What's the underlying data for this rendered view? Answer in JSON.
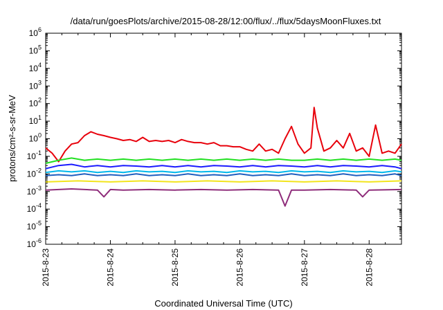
{
  "chart_data": {
    "type": "line",
    "title": "/data/run/goesPlots/archive/2015-08-28/12:00/flux/../flux/5daysMoonFluxes.txt",
    "xlabel": "Coordinated Universal Time (UTC)",
    "ylabel": "protons/cm²-s-sr-MeV",
    "yscale": "log",
    "ylim": [
      1e-06,
      1000000.0
    ],
    "xlim": [
      0,
      5.5
    ],
    "y_ticks": [
      {
        "base": "10",
        "exp": "-6"
      },
      {
        "base": "10",
        "exp": "-5"
      },
      {
        "base": "10",
        "exp": "-4"
      },
      {
        "base": "10",
        "exp": "-3"
      },
      {
        "base": "10",
        "exp": "-2"
      },
      {
        "base": "10",
        "exp": "-1"
      },
      {
        "base": "10",
        "exp": "0"
      },
      {
        "base": "10",
        "exp": "1"
      },
      {
        "base": "10",
        "exp": "2"
      },
      {
        "base": "10",
        "exp": "3"
      },
      {
        "base": "10",
        "exp": "4"
      },
      {
        "base": "10",
        "exp": "5"
      },
      {
        "base": "10",
        "exp": "6"
      }
    ],
    "x_ticks": [
      "2015-8-23",
      "2015-8-24",
      "2015-8-25",
      "2015-8-26",
      "2015-8-27",
      "2015-8-28"
    ],
    "grid": false,
    "series": [
      {
        "color": "#e8000b",
        "x": [
          0,
          0.1,
          0.2,
          0.3,
          0.4,
          0.5,
          0.6,
          0.7,
          0.8,
          0.9,
          1.0,
          1.1,
          1.2,
          1.3,
          1.4,
          1.5,
          1.6,
          1.7,
          1.8,
          1.9,
          2.0,
          2.1,
          2.2,
          2.3,
          2.4,
          2.5,
          2.6,
          2.7,
          2.8,
          2.9,
          3.0,
          3.1,
          3.2,
          3.3,
          3.4,
          3.5,
          3.6,
          3.7,
          3.8,
          3.9,
          4.0,
          4.1,
          4.15,
          4.2,
          4.3,
          4.4,
          4.5,
          4.6,
          4.7,
          4.8,
          4.9,
          5.0,
          5.1,
          5.2,
          5.3,
          5.4,
          5.5
        ],
        "y": [
          0.3,
          0.15,
          0.05,
          0.2,
          0.5,
          0.6,
          1.5,
          2.5,
          1.8,
          1.5,
          1.2,
          1.0,
          0.8,
          0.9,
          0.7,
          1.2,
          0.7,
          0.8,
          0.7,
          0.8,
          0.6,
          0.9,
          0.7,
          0.6,
          0.6,
          0.5,
          0.6,
          0.4,
          0.4,
          0.35,
          0.35,
          0.25,
          0.2,
          0.5,
          0.2,
          0.25,
          0.15,
          1.0,
          5,
          0.5,
          0.15,
          0.3,
          60,
          4,
          0.2,
          0.3,
          0.8,
          0.3,
          2,
          0.2,
          0.3,
          0.1,
          6,
          0.15,
          0.2,
          0.15,
          0.5
        ]
      },
      {
        "color": "#22e022",
        "x": [
          0,
          0.2,
          0.4,
          0.6,
          0.8,
          1.0,
          1.2,
          1.4,
          1.6,
          1.8,
          2.0,
          2.2,
          2.4,
          2.6,
          2.8,
          3.0,
          3.2,
          3.4,
          3.6,
          3.8,
          4.0,
          4.2,
          4.4,
          4.6,
          4.8,
          5.0,
          5.2,
          5.4,
          5.5
        ],
        "y": [
          0.04,
          0.06,
          0.08,
          0.06,
          0.07,
          0.06,
          0.07,
          0.06,
          0.07,
          0.06,
          0.07,
          0.06,
          0.07,
          0.06,
          0.07,
          0.06,
          0.07,
          0.06,
          0.07,
          0.06,
          0.06,
          0.07,
          0.06,
          0.07,
          0.06,
          0.07,
          0.06,
          0.07,
          0.06
        ]
      },
      {
        "color": "#1a1aff",
        "x": [
          0,
          0.2,
          0.4,
          0.6,
          0.8,
          1.0,
          1.2,
          1.4,
          1.6,
          1.8,
          2.0,
          2.2,
          2.4,
          2.6,
          2.8,
          3.0,
          3.2,
          3.4,
          3.6,
          3.8,
          4.0,
          4.2,
          4.4,
          4.6,
          4.8,
          5.0,
          5.2,
          5.4,
          5.5
        ],
        "y": [
          0.02,
          0.03,
          0.035,
          0.025,
          0.03,
          0.025,
          0.03,
          0.028,
          0.025,
          0.03,
          0.025,
          0.03,
          0.025,
          0.03,
          0.028,
          0.025,
          0.03,
          0.025,
          0.03,
          0.028,
          0.025,
          0.03,
          0.025,
          0.03,
          0.028,
          0.025,
          0.03,
          0.025,
          0.02
        ]
      },
      {
        "color": "#00b7eb",
        "x": [
          0,
          0.2,
          0.4,
          0.6,
          0.8,
          1.0,
          1.2,
          1.4,
          1.6,
          1.8,
          2.0,
          2.2,
          2.4,
          2.6,
          2.8,
          3.0,
          3.2,
          3.4,
          3.6,
          3.8,
          4.0,
          4.2,
          4.4,
          4.6,
          4.8,
          5.0,
          5.2,
          5.4,
          5.5
        ],
        "y": [
          0.012,
          0.015,
          0.013,
          0.015,
          0.012,
          0.014,
          0.012,
          0.015,
          0.013,
          0.014,
          0.012,
          0.015,
          0.013,
          0.014,
          0.012,
          0.015,
          0.013,
          0.014,
          0.012,
          0.015,
          0.013,
          0.014,
          0.012,
          0.015,
          0.013,
          0.014,
          0.012,
          0.015,
          0.013
        ]
      },
      {
        "color": "#1f5fbf",
        "x": [
          0,
          0.2,
          0.4,
          0.6,
          0.8,
          1.0,
          1.2,
          1.4,
          1.6,
          1.8,
          2.0,
          2.2,
          2.4,
          2.6,
          2.8,
          3.0,
          3.2,
          3.4,
          3.6,
          3.8,
          4.0,
          4.2,
          4.4,
          4.6,
          4.8,
          5.0,
          5.2,
          5.4,
          5.5
        ],
        "y": [
          0.008,
          0.009,
          0.008,
          0.01,
          0.008,
          0.009,
          0.008,
          0.01,
          0.008,
          0.009,
          0.008,
          0.01,
          0.008,
          0.009,
          0.008,
          0.01,
          0.008,
          0.009,
          0.008,
          0.01,
          0.008,
          0.009,
          0.008,
          0.01,
          0.008,
          0.009,
          0.008,
          0.01,
          0.008
        ]
      },
      {
        "color": "#f2e41c",
        "x": [
          0,
          0.5,
          1.0,
          1.5,
          2.0,
          2.5,
          3.0,
          3.5,
          4.0,
          4.5,
          5.0,
          5.5
        ],
        "y": [
          0.0035,
          0.004,
          0.0035,
          0.004,
          0.0035,
          0.004,
          0.0035,
          0.004,
          0.0035,
          0.004,
          0.0035,
          0.004
        ]
      },
      {
        "color": "#8e2c7a",
        "x": [
          0,
          0.4,
          0.8,
          0.9,
          1.0,
          1.2,
          1.6,
          2.0,
          2.4,
          2.8,
          3.2,
          3.6,
          3.7,
          3.8,
          4.0,
          4.4,
          4.8,
          4.9,
          5.0,
          5.5
        ],
        "y": [
          0.0012,
          0.0014,
          0.0012,
          0.0005,
          0.0013,
          0.0012,
          0.0013,
          0.0012,
          0.0013,
          0.0012,
          0.0013,
          0.0012,
          0.00015,
          0.0012,
          0.0012,
          0.0013,
          0.0012,
          0.0005,
          0.0012,
          0.0013
        ]
      }
    ]
  }
}
